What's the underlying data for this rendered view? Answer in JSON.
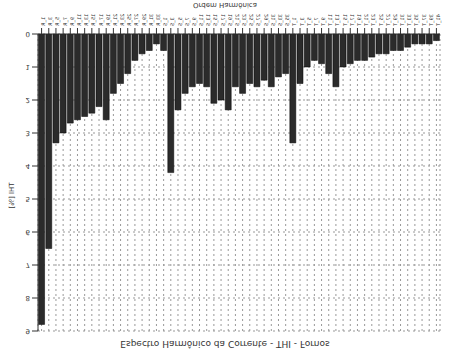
{
  "chart_data": {
    "type": "bar",
    "title": "Espectro Harmônico da Corrente - THI - Fornos",
    "x_label": "Ordem Harmônica",
    "y_label": "THI [%]",
    "categories": [
      "1_R",
      "3_R",
      "5_R",
      "7_R",
      "9_R",
      "11_R",
      "13_R",
      "15_R",
      "17_R",
      "19_R",
      "21_R",
      "23_R",
      "25_R",
      "27_R",
      "29_R",
      "31_R",
      "33_R",
      "1_S",
      "3_S",
      "5_S",
      "7_S",
      "9_S",
      "11_S",
      "13_S",
      "15_S",
      "17_S",
      "19_S",
      "21_S",
      "23_S",
      "25_S",
      "27_S",
      "29_S",
      "31_S",
      "33_S",
      "35_S",
      "1_T",
      "3_T",
      "5_T",
      "7_T",
      "9_T",
      "11_T",
      "13_T",
      "15_T",
      "17_T",
      "19_T",
      "21_T",
      "23_T",
      "25_T",
      "27_T",
      "29_T",
      "31_T",
      "33_T",
      "35_T",
      "37_T",
      "39_T",
      "41_T"
    ],
    "values": [
      8.8,
      6.5,
      3.3,
      3.0,
      2.7,
      2.6,
      2.5,
      2.4,
      2.2,
      2.6,
      1.8,
      1.5,
      1.2,
      0.8,
      0.6,
      0.5,
      0.3,
      0.5,
      4.2,
      2.3,
      1.8,
      1.6,
      1.5,
      1.6,
      2.1,
      2.0,
      2.3,
      1.6,
      1.8,
      1.5,
      1.6,
      1.4,
      1.6,
      1.3,
      1.2,
      3.3,
      1.5,
      1.0,
      0.8,
      0.9,
      1.2,
      1.6,
      1.0,
      0.9,
      0.8,
      0.8,
      0.7,
      0.6,
      0.6,
      0.5,
      0.5,
      0.4,
      0.3,
      0.3,
      0.3,
      0.2
    ],
    "color": "#2b2b2b",
    "ylim": [
      0,
      9
    ],
    "yticks": [
      0,
      1,
      2,
      3,
      4,
      5,
      6,
      7,
      8,
      9
    ],
    "grid": true
  }
}
